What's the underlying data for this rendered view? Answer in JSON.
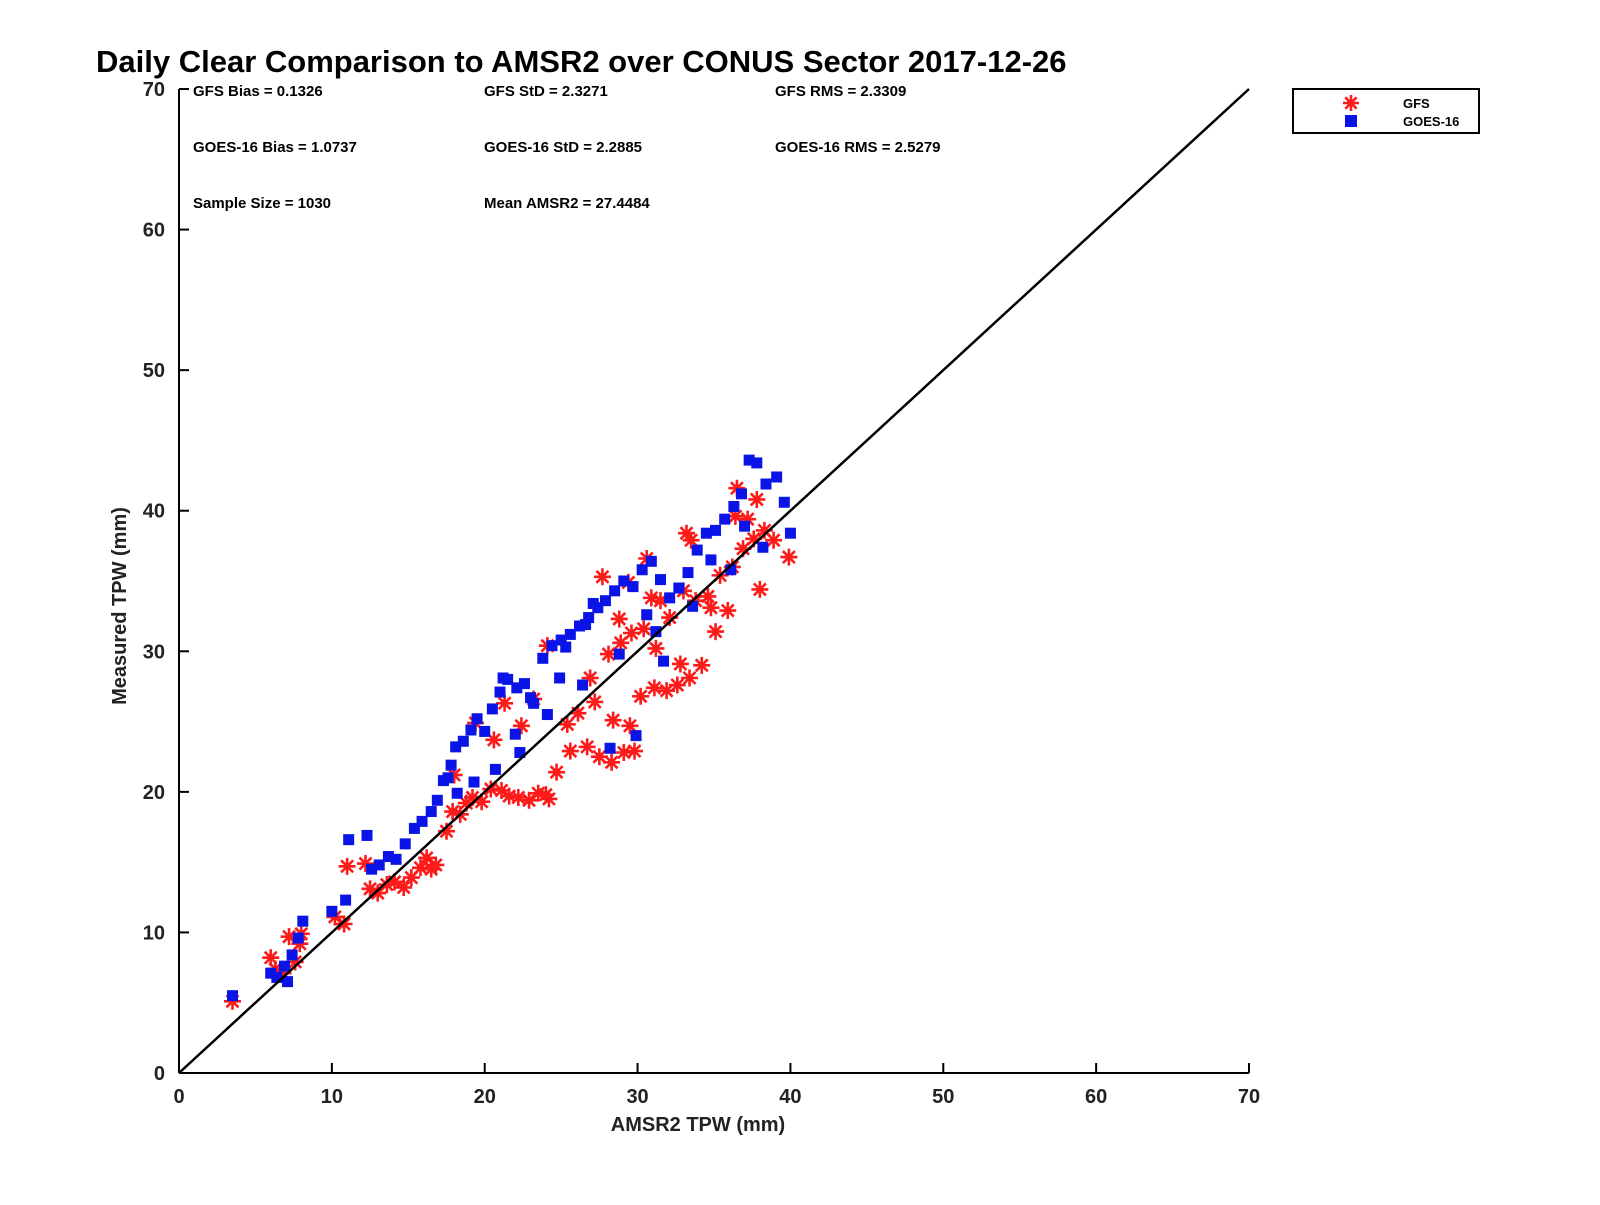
{
  "chart_data": {
    "type": "scatter",
    "title": "Daily Clear Comparison to AMSR2 over CONUS Sector 2017-12-26",
    "xlabel": "AMSR2 TPW (mm)",
    "ylabel": "Measured TPW (mm)",
    "xlim": [
      0,
      70
    ],
    "ylim": [
      0,
      70
    ],
    "xticks": [
      "0",
      "10",
      "20",
      "30",
      "40",
      "50",
      "60",
      "70"
    ],
    "yticks": [
      "0",
      "10",
      "20",
      "30",
      "40",
      "50",
      "60",
      "70"
    ],
    "reference_line": {
      "from": [
        0,
        0
      ],
      "to": [
        70,
        70
      ],
      "color": "#000000"
    },
    "grid": false,
    "legend_position": "top-right",
    "stats": [
      [
        "GFS Bias = 0.1326",
        "GFS StD = 2.3271",
        "GFS RMS = 2.3309"
      ],
      [
        "GOES-16 Bias = 1.0737",
        "GOES-16 StD = 2.2885",
        "GOES-16 RMS = 2.5279"
      ],
      [
        "Sample Size = 1030",
        "Mean AMSR2 = 27.4484"
      ]
    ],
    "series": [
      {
        "name": "GFS",
        "marker": "asterisk",
        "color": "#ff1a1a",
        "x": [
          3.5,
          6.0,
          6.3,
          6.8,
          7.2,
          7.6,
          8.0,
          7.9,
          10.2,
          10.8,
          11.0,
          12.2,
          12.5,
          13.0,
          13.6,
          14.1,
          14.7,
          15.2,
          15.8,
          16.2,
          16.5,
          16.8,
          17.5,
          17.9,
          18.4,
          18.8,
          19.2,
          19.8,
          20.4,
          21.1,
          21.6,
          22.2,
          22.9,
          23.5,
          24.2,
          24.0,
          22.4,
          24.7,
          25.6,
          26.7,
          27.5,
          28.3,
          29.1,
          29.8,
          25.4,
          26.1,
          27.2,
          28.4,
          29.5,
          30.2,
          31.1,
          31.9,
          32.6,
          33.4,
          34.2,
          35.1,
          35.9,
          28.1,
          28.9,
          29.6,
          30.4,
          31.2,
          32.1,
          33.0,
          33.8,
          34.6,
          35.4,
          36.2,
          36.9,
          37.6,
          38.3,
          38.0,
          38.9,
          39.9,
          37.2,
          36.5,
          33.2,
          30.6,
          29.4,
          27.7,
          24.1,
          21.3,
          19.4,
          18.0,
          32.8,
          34.8,
          36.4,
          37.8,
          31.5,
          26.9,
          23.2,
          20.6,
          28.8,
          30.9,
          33.5
        ],
        "y": [
          5.1,
          8.2,
          7.4,
          7.1,
          9.7,
          7.9,
          9.9,
          9.2,
          11.1,
          10.6,
          14.7,
          14.9,
          13.1,
          12.8,
          13.4,
          13.6,
          13.2,
          13.9,
          14.6,
          15.3,
          14.5,
          14.8,
          17.2,
          18.6,
          18.4,
          19.2,
          19.6,
          19.3,
          20.2,
          20.1,
          19.7,
          19.6,
          19.4,
          19.9,
          19.5,
          19.8,
          24.7,
          21.4,
          22.9,
          23.2,
          22.5,
          22.1,
          22.8,
          22.9,
          24.8,
          25.6,
          26.4,
          25.1,
          24.7,
          26.8,
          27.4,
          27.2,
          27.6,
          28.1,
          29.0,
          31.4,
          32.9,
          29.8,
          30.6,
          31.3,
          31.6,
          30.2,
          32.4,
          34.3,
          33.6,
          33.9,
          35.4,
          36.0,
          37.3,
          38.0,
          38.6,
          34.4,
          37.9,
          36.7,
          39.4,
          41.6,
          38.4,
          36.6,
          34.9,
          35.3,
          30.4,
          26.3,
          24.9,
          21.2,
          29.1,
          33.1,
          39.6,
          40.8,
          33.6,
          28.1,
          26.6,
          23.7,
          32.3,
          33.8,
          37.9
        ]
      },
      {
        "name": "GOES-16",
        "marker": "square",
        "color": "#0a14e6",
        "x": [
          3.5,
          6.0,
          6.4,
          6.9,
          7.1,
          7.4,
          7.8,
          8.1,
          10.0,
          10.9,
          11.1,
          12.3,
          12.6,
          13.1,
          13.7,
          14.2,
          14.8,
          15.4,
          15.9,
          16.5,
          16.9,
          17.3,
          17.8,
          18.1,
          18.6,
          19.1,
          19.5,
          20.0,
          20.5,
          21.0,
          21.2,
          21.5,
          22.1,
          22.6,
          23.2,
          23.8,
          24.4,
          25.0,
          25.6,
          26.2,
          26.8,
          27.4,
          27.9,
          28.5,
          29.1,
          29.7,
          30.3,
          30.9,
          31.5,
          32.1,
          32.7,
          33.3,
          33.9,
          34.5,
          35.1,
          35.7,
          36.3,
          36.8,
          37.3,
          37.8,
          38.4,
          39.1,
          39.6,
          40.0,
          38.2,
          36.1,
          33.6,
          31.2,
          28.8,
          26.4,
          24.1,
          22.3,
          20.7,
          19.3,
          18.2,
          17.6,
          28.2,
          29.9,
          31.7,
          26.6,
          24.9,
          23.0,
          22.0,
          27.1,
          25.3,
          30.6,
          34.8,
          37.0
        ],
        "y": [
          5.5,
          7.1,
          6.8,
          7.6,
          6.5,
          8.4,
          9.6,
          10.8,
          11.5,
          12.3,
          16.6,
          16.9,
          14.5,
          14.8,
          15.4,
          15.2,
          16.3,
          17.4,
          17.9,
          18.6,
          19.4,
          20.8,
          21.9,
          23.2,
          23.6,
          24.4,
          25.2,
          24.3,
          25.9,
          27.1,
          28.1,
          28.0,
          27.4,
          27.7,
          26.3,
          29.5,
          30.4,
          30.8,
          31.2,
          31.8,
          32.4,
          33.1,
          33.6,
          34.3,
          35.0,
          34.6,
          35.8,
          36.4,
          35.1,
          33.8,
          34.5,
          35.6,
          37.2,
          38.4,
          38.6,
          39.4,
          40.3,
          41.2,
          43.6,
          43.4,
          41.9,
          42.4,
          40.6,
          38.4,
          37.4,
          35.8,
          33.2,
          31.4,
          29.8,
          27.6,
          25.5,
          22.8,
          21.6,
          20.7,
          19.9,
          21.0,
          23.1,
          24.0,
          29.3,
          31.9,
          28.1,
          26.7,
          24.1,
          33.4,
          30.3,
          32.6,
          36.5,
          38.9
        ]
      }
    ]
  }
}
